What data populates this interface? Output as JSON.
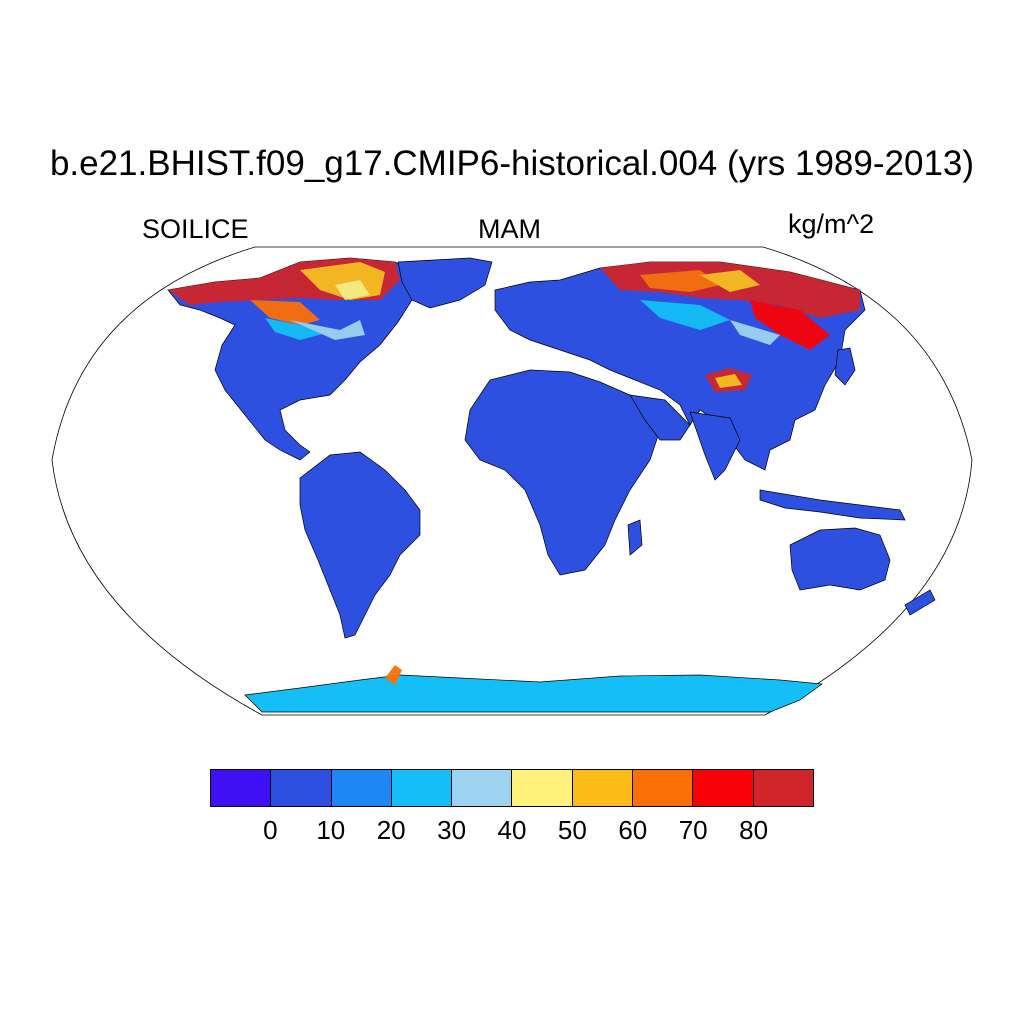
{
  "title": "b.e21.BHIST.f09_g17.CMIP6-historical.004 (yrs 1989-2013)",
  "left_label": "SOILICE",
  "center_label": "MAM",
  "right_label": "kg/m^2",
  "colorbar": {
    "colors": [
      "#3f10f4",
      "#2d50e0",
      "#1f86f6",
      "#14bff7",
      "#9dd3f0",
      "#fff27c",
      "#fcbc18",
      "#fb6f07",
      "#f90107",
      "#d0252b"
    ],
    "labels": [
      "0",
      "10",
      "20",
      "30",
      "40",
      "50",
      "60",
      "70",
      "80"
    ]
  },
  "map_colors": {
    "land_base": "#2d50e0",
    "ocean": "#ffffff"
  }
}
